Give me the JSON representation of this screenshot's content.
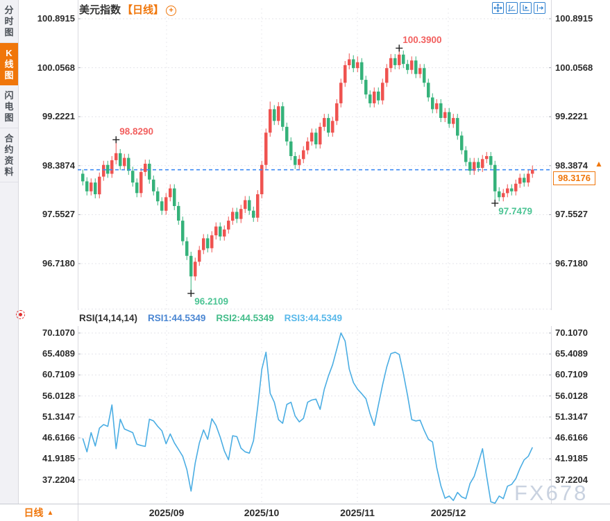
{
  "header": {
    "title": "美元指数",
    "period_tag": "【日线】",
    "add_icon": "+"
  },
  "sidebar": {
    "items": [
      {
        "label": "分时图",
        "active": false
      },
      {
        "label": "K线图",
        "active": true
      },
      {
        "label": "闪电图",
        "active": false
      },
      {
        "label": "合约资料",
        "active": false
      }
    ]
  },
  "toolbar": {
    "icons": [
      "pan-crosshair-icon",
      "axis-scale-icon",
      "auto-fit-axis-icon",
      "exit-chart-icon"
    ]
  },
  "bottom_bar": {
    "period_label": "日线",
    "arrow": "▲",
    "dates": [
      "2025/09",
      "2025/10",
      "2025/11",
      "2025/12"
    ]
  },
  "watermark": "FX678",
  "colors": {
    "accent_orange": "#f0760a",
    "candle_up": "#ef5350",
    "candle_down": "#35b27a",
    "annotation_high": "#f2605f",
    "annotation_low": "#4cc494",
    "current_price_line": "#3d8af5",
    "rsi_line": "#4aade3",
    "rsi1_label": "#4a86d2",
    "rsi2_label": "#44bd8a",
    "rsi3_label": "#58b8ea",
    "toolbar_blue": "#2f80cf",
    "grid": "#e4e4ea",
    "plot_border": "#d9d9df"
  },
  "chart_data": [
    {
      "type": "candlestick",
      "title": "美元指数【日线】",
      "y_ticks": [
        "100.8915",
        "100.0568",
        "99.2221",
        "98.3874",
        "97.5527",
        "96.7180"
      ],
      "y_tick_values": [
        100.8915,
        100.0568,
        99.2221,
        98.3874,
        97.5527,
        96.718
      ],
      "x_dates": [
        "2025/09",
        "2025/10",
        "2025/11",
        "2025/12"
      ],
      "current_price": 98.3176,
      "current_price_label": "98.3176",
      "price_direction": "up",
      "annotations": [
        {
          "label": "98.8290",
          "value": 98.829,
          "index": 8,
          "type": "high"
        },
        {
          "label": "100.3900",
          "value": 100.39,
          "index": 76,
          "type": "high"
        },
        {
          "label": "96.2109",
          "value": 96.2109,
          "index": 26,
          "type": "low"
        },
        {
          "label": "97.7479",
          "value": 97.7479,
          "index": 99,
          "type": "low"
        }
      ],
      "candles": [
        [
          98.25,
          98.32,
          98.05,
          98.12
        ],
        [
          98.12,
          98.19,
          97.88,
          97.95
        ],
        [
          97.95,
          98.17,
          97.88,
          98.1
        ],
        [
          98.1,
          98.17,
          97.83,
          97.9
        ],
        [
          97.9,
          98.27,
          97.83,
          98.2
        ],
        [
          98.2,
          98.47,
          98.13,
          98.4
        ],
        [
          98.4,
          98.47,
          98.18,
          98.25
        ],
        [
          98.25,
          98.55,
          98.18,
          98.48
        ],
        [
          98.48,
          98.83,
          98.41,
          98.6
        ],
        [
          98.6,
          98.67,
          98.31,
          98.38
        ],
        [
          98.38,
          98.59,
          98.31,
          98.52
        ],
        [
          98.52,
          98.59,
          98.23,
          98.3
        ],
        [
          98.3,
          98.37,
          98.03,
          98.1
        ],
        [
          98.1,
          98.17,
          97.85,
          97.92
        ],
        [
          97.92,
          98.35,
          97.85,
          98.28
        ],
        [
          98.28,
          98.49,
          98.21,
          98.42
        ],
        [
          98.42,
          98.49,
          98.08,
          98.15
        ],
        [
          98.15,
          98.22,
          97.88,
          97.95
        ],
        [
          97.95,
          98.02,
          97.71,
          97.78
        ],
        [
          97.78,
          97.85,
          97.55,
          97.62
        ],
        [
          97.62,
          97.92,
          97.55,
          97.85
        ],
        [
          97.85,
          98.07,
          97.78,
          98.0
        ],
        [
          98.0,
          98.07,
          97.63,
          97.7
        ],
        [
          97.7,
          97.77,
          97.38,
          97.45
        ],
        [
          97.45,
          97.52,
          97.03,
          97.1
        ],
        [
          97.1,
          97.17,
          96.78,
          96.85
        ],
        [
          96.85,
          96.92,
          96.21,
          96.5
        ],
        [
          96.5,
          96.82,
          96.43,
          96.75
        ],
        [
          96.75,
          97.02,
          96.68,
          96.95
        ],
        [
          96.95,
          97.22,
          96.88,
          97.15
        ],
        [
          97.15,
          97.22,
          96.91,
          96.98
        ],
        [
          96.98,
          97.27,
          96.91,
          97.2
        ],
        [
          97.2,
          97.42,
          97.13,
          97.35
        ],
        [
          97.35,
          97.42,
          97.11,
          97.18
        ],
        [
          97.18,
          97.37,
          97.11,
          97.3
        ],
        [
          97.3,
          97.52,
          97.23,
          97.45
        ],
        [
          97.45,
          97.67,
          97.38,
          97.6
        ],
        [
          97.6,
          97.67,
          97.41,
          97.48
        ],
        [
          97.48,
          97.72,
          97.41,
          97.65
        ],
        [
          97.65,
          97.87,
          97.58,
          97.8
        ],
        [
          97.8,
          97.87,
          97.55,
          97.62
        ],
        [
          97.62,
          97.69,
          97.43,
          97.5
        ],
        [
          97.5,
          97.97,
          97.43,
          97.9
        ],
        [
          97.9,
          98.47,
          97.83,
          98.4
        ],
        [
          98.4,
          99.02,
          98.33,
          98.95
        ],
        [
          98.95,
          99.48,
          98.88,
          99.35
        ],
        [
          99.35,
          99.42,
          99.08,
          99.15
        ],
        [
          99.15,
          99.47,
          99.08,
          99.4
        ],
        [
          99.4,
          99.47,
          98.98,
          99.05
        ],
        [
          99.05,
          99.12,
          98.73,
          98.8
        ],
        [
          98.8,
          98.87,
          98.48,
          98.55
        ],
        [
          98.55,
          98.62,
          98.33,
          98.4
        ],
        [
          98.4,
          98.57,
          98.33,
          98.5
        ],
        [
          98.5,
          98.72,
          98.43,
          98.65
        ],
        [
          98.65,
          98.87,
          98.58,
          98.8
        ],
        [
          98.8,
          99.02,
          98.73,
          98.95
        ],
        [
          98.95,
          99.02,
          98.68,
          98.75
        ],
        [
          98.75,
          99.12,
          98.68,
          99.05
        ],
        [
          99.05,
          99.27,
          98.98,
          99.2
        ],
        [
          99.2,
          99.27,
          98.88,
          98.95
        ],
        [
          98.95,
          99.22,
          98.88,
          99.15
        ],
        [
          99.15,
          99.52,
          99.08,
          99.45
        ],
        [
          99.45,
          99.87,
          99.38,
          99.8
        ],
        [
          99.8,
          100.17,
          99.73,
          100.1
        ],
        [
          100.1,
          100.3,
          100.03,
          100.2
        ],
        [
          100.2,
          100.27,
          99.98,
          100.05
        ],
        [
          100.05,
          100.25,
          99.98,
          100.15
        ],
        [
          100.15,
          100.22,
          99.78,
          99.85
        ],
        [
          99.85,
          99.92,
          99.53,
          99.6
        ],
        [
          99.6,
          99.67,
          99.38,
          99.45
        ],
        [
          99.45,
          99.72,
          99.38,
          99.65
        ],
        [
          99.65,
          99.72,
          99.43,
          99.5
        ],
        [
          99.5,
          99.87,
          99.43,
          99.8
        ],
        [
          99.8,
          100.12,
          99.73,
          100.05
        ],
        [
          100.05,
          100.29,
          99.98,
          100.22
        ],
        [
          100.22,
          100.29,
          100.03,
          100.1
        ],
        [
          100.1,
          100.39,
          100.03,
          100.28
        ],
        [
          100.28,
          100.35,
          100.05,
          100.12
        ],
        [
          100.12,
          100.19,
          99.95,
          100.02
        ],
        [
          100.02,
          100.25,
          99.95,
          100.18
        ],
        [
          100.18,
          100.25,
          99.88,
          99.95
        ],
        [
          99.95,
          100.12,
          99.88,
          100.05
        ],
        [
          100.05,
          100.12,
          99.73,
          99.8
        ],
        [
          99.8,
          99.87,
          99.48,
          99.55
        ],
        [
          99.55,
          99.62,
          99.28,
          99.35
        ],
        [
          99.35,
          99.52,
          99.28,
          99.45
        ],
        [
          99.45,
          99.52,
          99.13,
          99.2
        ],
        [
          99.2,
          99.37,
          99.13,
          99.3
        ],
        [
          99.3,
          99.37,
          99.03,
          99.1
        ],
        [
          99.1,
          99.27,
          99.03,
          99.2
        ],
        [
          99.2,
          99.27,
          98.83,
          98.9
        ],
        [
          98.9,
          98.97,
          98.58,
          98.65
        ],
        [
          98.65,
          98.72,
          98.38,
          98.45
        ],
        [
          98.45,
          98.52,
          98.23,
          98.3
        ],
        [
          98.3,
          98.52,
          98.23,
          98.45
        ],
        [
          98.45,
          98.52,
          98.28,
          98.35
        ],
        [
          98.35,
          98.57,
          98.28,
          98.5
        ],
        [
          98.5,
          98.62,
          98.43,
          98.55
        ],
        [
          98.55,
          98.62,
          98.33,
          98.4
        ],
        [
          98.4,
          98.47,
          97.75,
          97.95
        ],
        [
          97.95,
          98.02,
          97.78,
          97.85
        ],
        [
          97.85,
          97.99,
          97.78,
          97.92
        ],
        [
          97.92,
          98.07,
          97.85,
          98.0
        ],
        [
          98.0,
          98.07,
          97.88,
          97.95
        ],
        [
          97.95,
          98.15,
          97.88,
          98.08
        ],
        [
          98.08,
          98.25,
          98.01,
          98.18
        ],
        [
          98.18,
          98.25,
          98.03,
          98.1
        ],
        [
          98.1,
          98.32,
          98.03,
          98.25
        ],
        [
          98.25,
          98.39,
          98.18,
          98.32
        ]
      ]
    },
    {
      "type": "line",
      "title": "RSI(14,14,14)",
      "legend": [
        {
          "label": "RSI1:44.5349",
          "color": "#4a86d2"
        },
        {
          "label": "RSI2:44.5349",
          "color": "#44bd8a"
        },
        {
          "label": "RSI3:44.5349",
          "color": "#58b8ea"
        }
      ],
      "y_ticks": [
        "70.1070",
        "65.4089",
        "60.7109",
        "56.0128",
        "51.3147",
        "46.6166",
        "41.9185",
        "37.2204"
      ],
      "y_tick_values": [
        70.107,
        65.4089,
        60.7109,
        56.0128,
        51.3147,
        46.6166,
        41.9185,
        37.2204
      ],
      "line_color": "#4aade3",
      "values": [
        46.5,
        43.5,
        47.8,
        44.8,
        48.8,
        49.6,
        49.2,
        54.0,
        44.2,
        50.8,
        48.6,
        48.2,
        47.8,
        45.2,
        44.9,
        44.7,
        50.8,
        50.4,
        49.2,
        48.2,
        45.3,
        47.5,
        45.5,
        44.0,
        42.5,
        39.5,
        34.7,
        41.0,
        45.5,
        48.4,
        46.3,
        50.9,
        49.4,
        46.8,
        43.7,
        41.7,
        47.1,
        46.9,
        44.3,
        43.5,
        43.2,
        46.0,
        53.5,
        62.0,
        65.8,
        56.6,
        54.6,
        50.7,
        49.9,
        54.1,
        54.6,
        51.5,
        50.2,
        51.0,
        54.6,
        55.1,
        55.3,
        53.0,
        57.5,
        60.5,
        63.0,
        66.5,
        70.1,
        68.3,
        62.0,
        59.0,
        57.5,
        56.5,
        55.4,
        52.0,
        49.4,
        54.0,
        58.5,
        62.5,
        65.5,
        65.8,
        65.3,
        61.0,
        56.1,
        50.7,
        50.4,
        50.6,
        48.3,
        46.3,
        45.7,
        40.0,
        35.9,
        33.1,
        33.6,
        32.6,
        34.4,
        33.4,
        33.0,
        36.4,
        38.0,
        41.0,
        44.2,
        38.0,
        32.3,
        32.0,
        33.6,
        33.0,
        35.8,
        36.2,
        37.5,
        39.8,
        41.7,
        42.5,
        44.5
      ]
    }
  ]
}
